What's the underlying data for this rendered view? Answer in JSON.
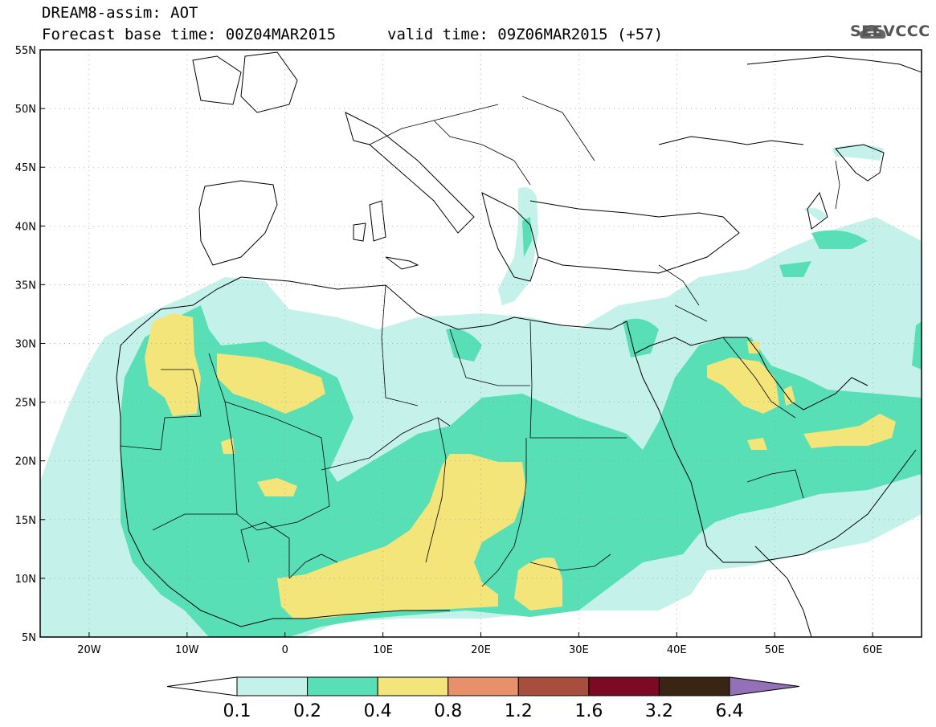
{
  "header": {
    "title": "DREAM8-assim: AOT",
    "base_time": "Forecast base time: 00Z04MAR2015",
    "valid_time": "valid time: 09Z06MAR2015 (+57)"
  },
  "logo": {
    "text": "SEEVCCC",
    "icon": "cloud-icon"
  },
  "map": {
    "lon_range": [
      -25,
      65
    ],
    "lat_range": [
      5,
      55
    ],
    "lon_ticks": [
      {
        "value": -20,
        "label": "20W"
      },
      {
        "value": -10,
        "label": "10W"
      },
      {
        "value": 0,
        "label": "0"
      },
      {
        "value": 10,
        "label": "10E"
      },
      {
        "value": 20,
        "label": "20E"
      },
      {
        "value": 30,
        "label": "30E"
      },
      {
        "value": 40,
        "label": "40E"
      },
      {
        "value": 50,
        "label": "50E"
      },
      {
        "value": 60,
        "label": "60E"
      }
    ],
    "lat_ticks": [
      {
        "value": 55,
        "label": "55N"
      },
      {
        "value": 50,
        "label": "50N"
      },
      {
        "value": 45,
        "label": "45N"
      },
      {
        "value": 40,
        "label": "40N"
      },
      {
        "value": 35,
        "label": "35N"
      },
      {
        "value": 30,
        "label": "30N"
      },
      {
        "value": 25,
        "label": "25N"
      },
      {
        "value": 20,
        "label": "20N"
      },
      {
        "value": 15,
        "label": "15N"
      },
      {
        "value": 10,
        "label": "10N"
      },
      {
        "value": 5,
        "label": "5N"
      }
    ],
    "grid": true
  },
  "colors": {
    "c0": "#c4f2ea",
    "c1": "#59dfb6",
    "c2": "#f4e57a",
    "c3": "#e8906a",
    "c4": "#a84e3e",
    "c5": "#7d0a25",
    "c6": "#3a2515",
    "c7": "#9470b8"
  },
  "colorbar": {
    "labels": [
      "0.1",
      "0.2",
      "0.4",
      "0.8",
      "1.2",
      "1.6",
      "3.2",
      "6.4"
    ]
  }
}
